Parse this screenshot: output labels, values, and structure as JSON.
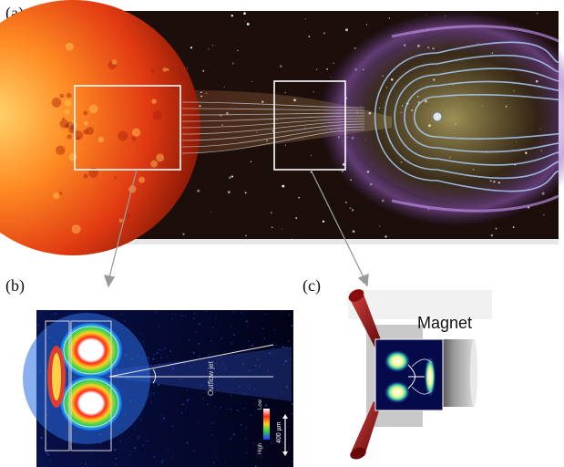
{
  "panels": {
    "a": {
      "label": "(a)"
    },
    "b": {
      "label": "(b)",
      "annotation_path": "Outflow jet",
      "scale_label": "400 µm",
      "colorbar_high": "High",
      "colorbar_low": "Low"
    },
    "c": {
      "label": "(c)",
      "magnet_label": "Magnet"
    }
  },
  "colors": {
    "space": "#1a0f0c",
    "sun": "#e8451a",
    "field_lines": "#9ec8ff",
    "magnetopause": "#c7c25a",
    "zoom_box": "#ffffff",
    "arrow": "#a0a0a0"
  }
}
